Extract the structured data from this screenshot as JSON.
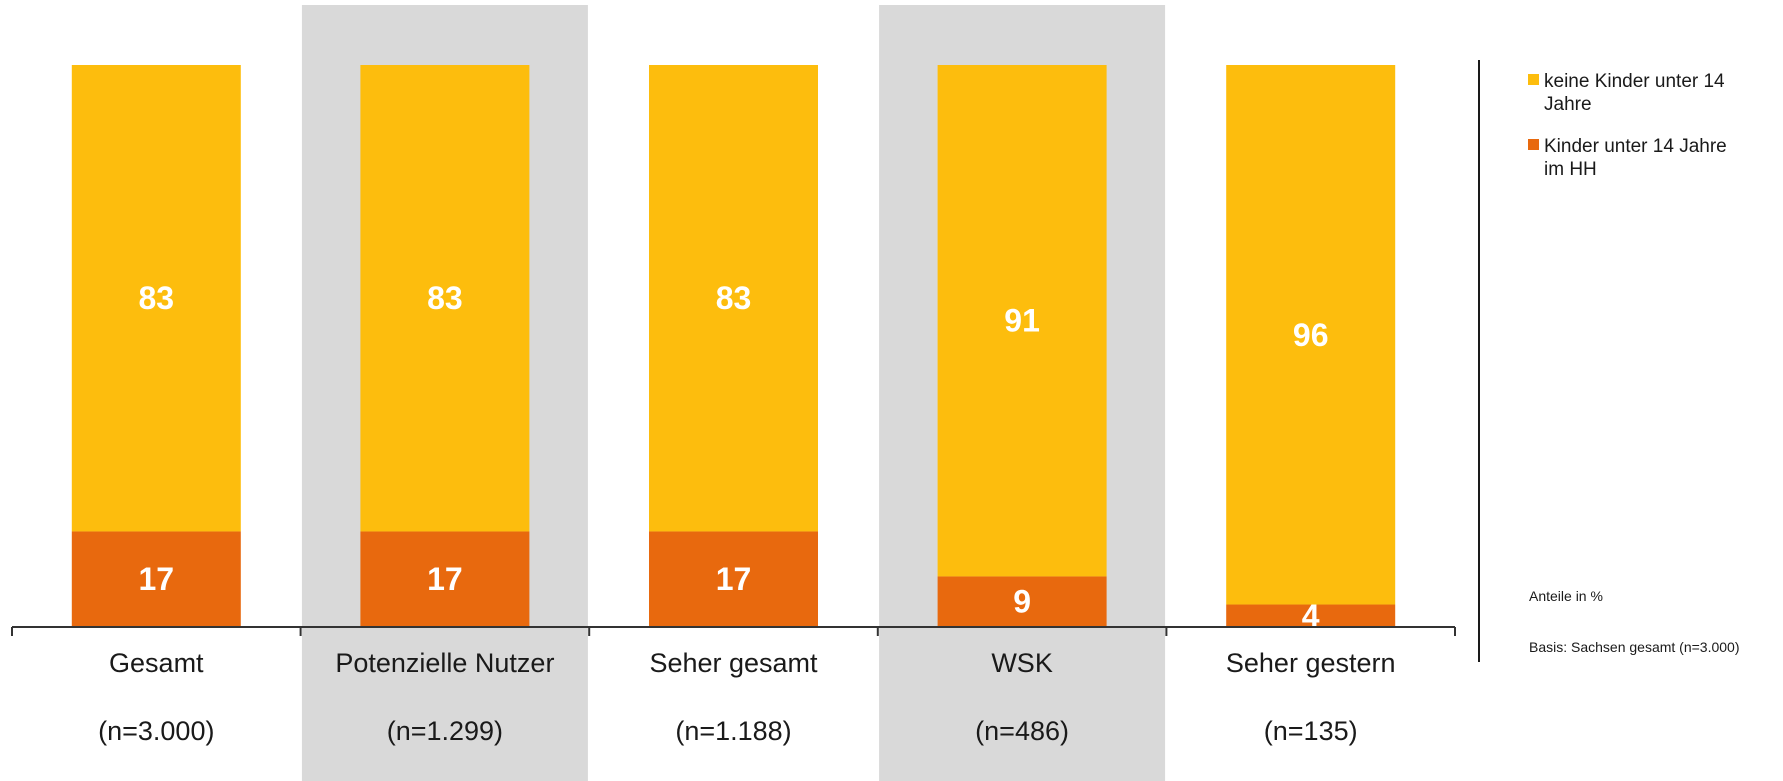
{
  "chart_data": {
    "type": "bar",
    "stacked": true,
    "orientation": "vertical",
    "categories": [
      "Gesamt",
      "Potenzielle Nutzer",
      "Seher gesamt",
      "WSK",
      "Seher gestern"
    ],
    "sample_sizes": [
      "(n=3.000)",
      "(n=1.299)",
      "(n=1.188)",
      "(n=486)",
      "(n=135)"
    ],
    "highlighted_categories": [
      "Potenzielle Nutzer",
      "WSK"
    ],
    "series": [
      {
        "name": "Kinder unter 14 Jahre im HH",
        "values": [
          17,
          17,
          17,
          9,
          4
        ],
        "color": "#E8690E"
      },
      {
        "name": "keine Kinder unter 14 Jahre",
        "values": [
          83,
          83,
          83,
          91,
          96
        ],
        "color": "#FDBD0D"
      }
    ],
    "ylim": [
      0,
      100
    ],
    "legend_position": "right",
    "notes": [
      "Anteile in %",
      "Basis: Sachsen gesamt (n=3.000)"
    ],
    "highlight_color": "#D9D9D9"
  }
}
